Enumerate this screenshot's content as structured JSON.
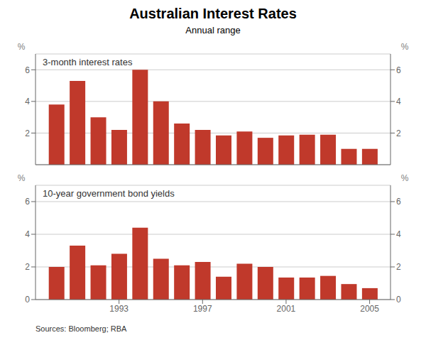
{
  "title": "Australian Interest Rates",
  "subtitle": "Annual range",
  "annotation": "Sources: Bloomberg; RBA",
  "chart_data": [
    {
      "type": "bar",
      "title": "3-month interest rates",
      "x": [
        1990,
        1991,
        1992,
        1993,
        1994,
        1995,
        1996,
        1997,
        1998,
        1999,
        2000,
        2001,
        2002,
        2003,
        2004,
        2005
      ],
      "values": [
        3.8,
        5.3,
        3.0,
        2.2,
        6.0,
        4.0,
        2.6,
        2.2,
        1.85,
        2.1,
        1.7,
        1.85,
        1.9,
        1.9,
        1.0,
        1.0
      ],
      "color": "#C0392B",
      "xlim": [
        1989,
        2006
      ],
      "ylim": [
        0,
        7
      ],
      "yticks": [
        2,
        4,
        6
      ],
      "y2lim": [
        0,
        7
      ],
      "y2ticks": [
        2,
        4,
        6
      ],
      "ylabel": "%",
      "y2label": "%",
      "grid": true,
      "tick_labels": "y"
    },
    {
      "type": "bar",
      "title": "10-year government bond yields",
      "x": [
        1990,
        1991,
        1992,
        1993,
        1994,
        1995,
        1996,
        1997,
        1998,
        1999,
        2000,
        2001,
        2002,
        2003,
        2004,
        2005
      ],
      "values": [
        2.0,
        3.3,
        2.1,
        2.8,
        4.4,
        2.5,
        2.1,
        2.3,
        1.4,
        2.2,
        2.0,
        1.35,
        1.35,
        1.45,
        0.95,
        0.7
      ],
      "color": "#C0392B",
      "xlim": [
        1989,
        2006
      ],
      "xticks": [
        1993,
        1997,
        2001,
        2005
      ],
      "ylim": [
        0,
        7
      ],
      "yticks": [
        0,
        2,
        4,
        6
      ],
      "y2lim": [
        0,
        7
      ],
      "y2ticks": [
        0,
        2,
        4,
        6
      ],
      "ylabel": "%",
      "y2label": "%",
      "grid": true
    }
  ]
}
